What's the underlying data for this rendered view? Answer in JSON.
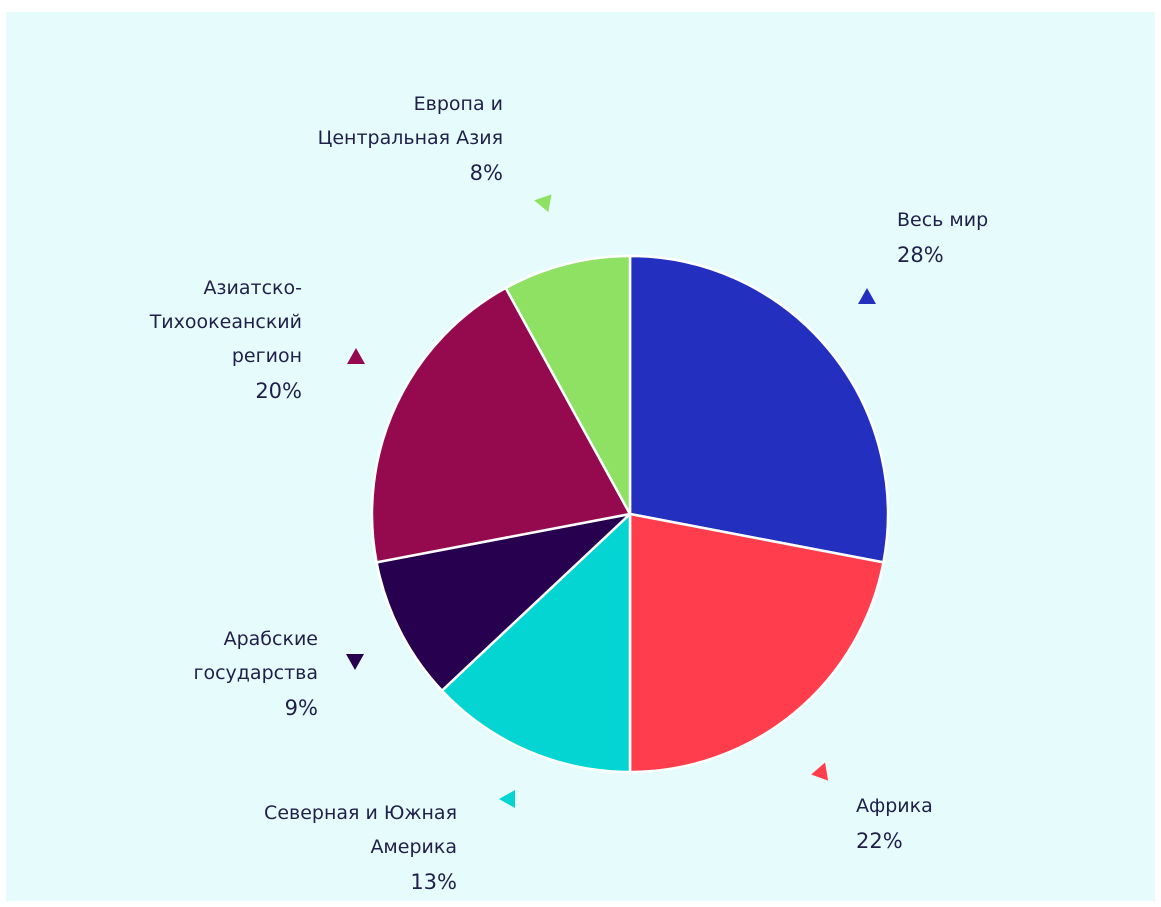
{
  "chart_data": {
    "type": "pie",
    "start": "top",
    "direction": "clockwise",
    "slices": [
      {
        "label": [
          "Весь мир"
        ],
        "value": 28,
        "pct_text": "28%",
        "color": "#222fbf"
      },
      {
        "label": [
          "Африка"
        ],
        "value": 22,
        "pct_text": "22%",
        "color": "#ff3d4c"
      },
      {
        "label": [
          "Северная и Южная",
          "Америка"
        ],
        "value": 13,
        "pct_text": "13%",
        "color": "#05d5d2"
      },
      {
        "label": [
          "Арабские",
          "государства"
        ],
        "value": 9,
        "pct_text": "9%",
        "color": "#27004f"
      },
      {
        "label": [
          "Азиатско-",
          "Тихоокеанский",
          "регион"
        ],
        "value": 20,
        "pct_text": "20%",
        "color": "#950a4f"
      },
      {
        "label": [
          "Европа и",
          "Центральная Азия"
        ],
        "value": 8,
        "pct_text": "8%",
        "color": "#8fe164"
      }
    ],
    "legend": "none"
  },
  "colors": {
    "background": "#e6fcfc",
    "slice_border": "#ffffff",
    "text": "#1f1f4a"
  }
}
